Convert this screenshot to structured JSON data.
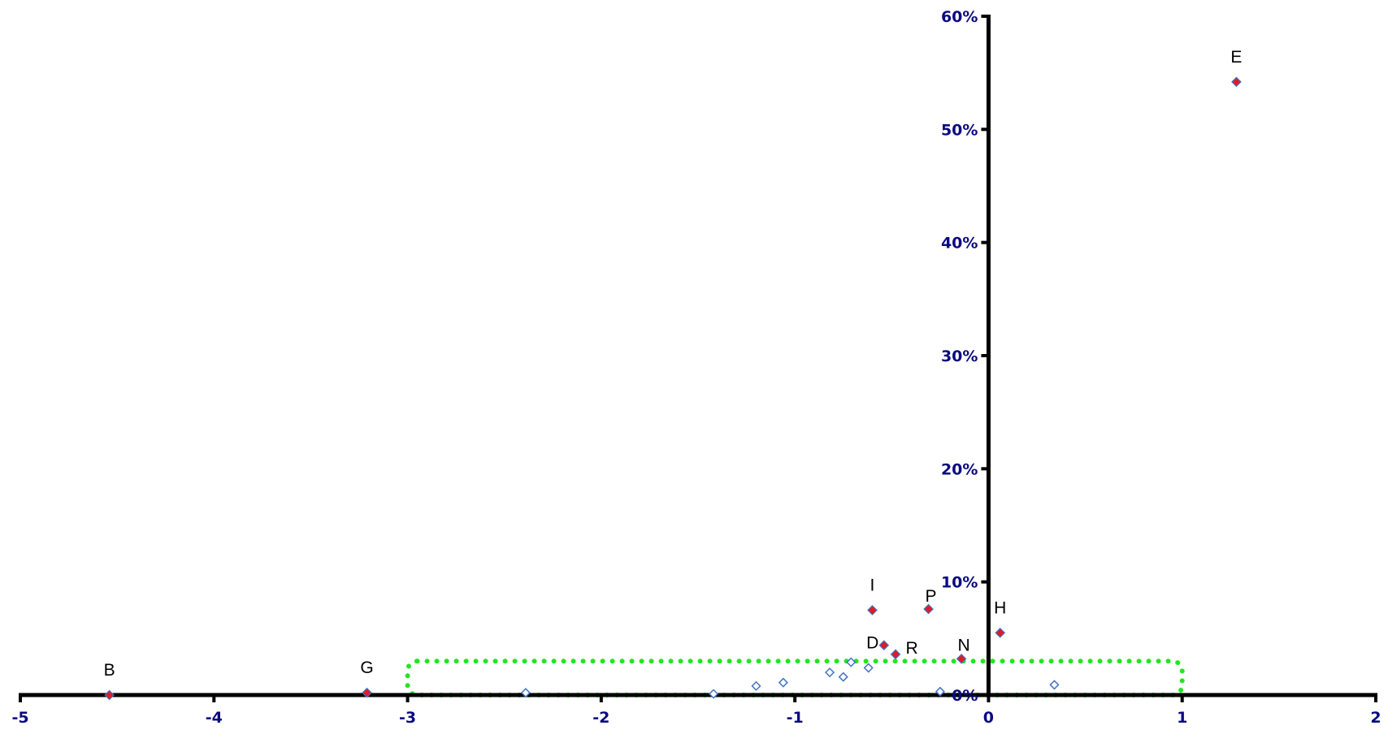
{
  "chart_data": {
    "type": "scatter",
    "title": "",
    "xlabel": "",
    "ylabel": "",
    "xlim": [
      -5,
      2
    ],
    "ylim": [
      0,
      0.6
    ],
    "x_ticks": [
      -5,
      -4,
      -3,
      -2,
      -1,
      0,
      1,
      2
    ],
    "x_tick_labels": [
      "-5",
      "-4",
      "-3",
      "-2",
      "-1",
      "0",
      "1",
      "2"
    ],
    "y_ticks": [
      0,
      0.1,
      0.2,
      0.3,
      0.4,
      0.5,
      0.6
    ],
    "y_tick_labels": [
      "0%",
      "10%",
      "20%",
      "30%",
      "40%",
      "50%",
      "60%"
    ],
    "grid": false,
    "legend": "none",
    "colors": {
      "axis": "#000000",
      "tick_label": "#0a0a80",
      "labeled_marker_fill": "#e01b24",
      "labeled_marker_stroke": "#4472c4",
      "open_marker_stroke": "#4472c4",
      "highlight_box": "#22e61f",
      "point_label": "#000000"
    },
    "labeled_points": [
      {
        "label": "B",
        "x": -4.54,
        "y": 0.0
      },
      {
        "label": "G",
        "x": -3.21,
        "y": 0.002
      },
      {
        "label": "I",
        "x": -0.6,
        "y": 0.075
      },
      {
        "label": "D",
        "x": -0.54,
        "y": 0.044
      },
      {
        "label": "R",
        "x": -0.48,
        "y": 0.036
      },
      {
        "label": "P",
        "x": -0.31,
        "y": 0.076
      },
      {
        "label": "N",
        "x": -0.14,
        "y": 0.032
      },
      {
        "label": "H",
        "x": 0.06,
        "y": 0.055
      },
      {
        "label": "E",
        "x": 1.28,
        "y": 0.542
      }
    ],
    "unlabeled_points": [
      {
        "x": -2.39,
        "y": 0.002
      },
      {
        "x": -1.42,
        "y": 0.001
      },
      {
        "x": -1.2,
        "y": 0.008
      },
      {
        "x": -1.06,
        "y": 0.011
      },
      {
        "x": -0.82,
        "y": 0.02
      },
      {
        "x": -0.75,
        "y": 0.016
      },
      {
        "x": -0.71,
        "y": 0.029
      },
      {
        "x": -0.62,
        "y": 0.024
      },
      {
        "x": -0.25,
        "y": 0.003
      },
      {
        "x": 0.34,
        "y": 0.009
      }
    ],
    "highlight_region": {
      "x": [
        -3,
        1
      ],
      "y": [
        0,
        0.03
      ]
    }
  }
}
